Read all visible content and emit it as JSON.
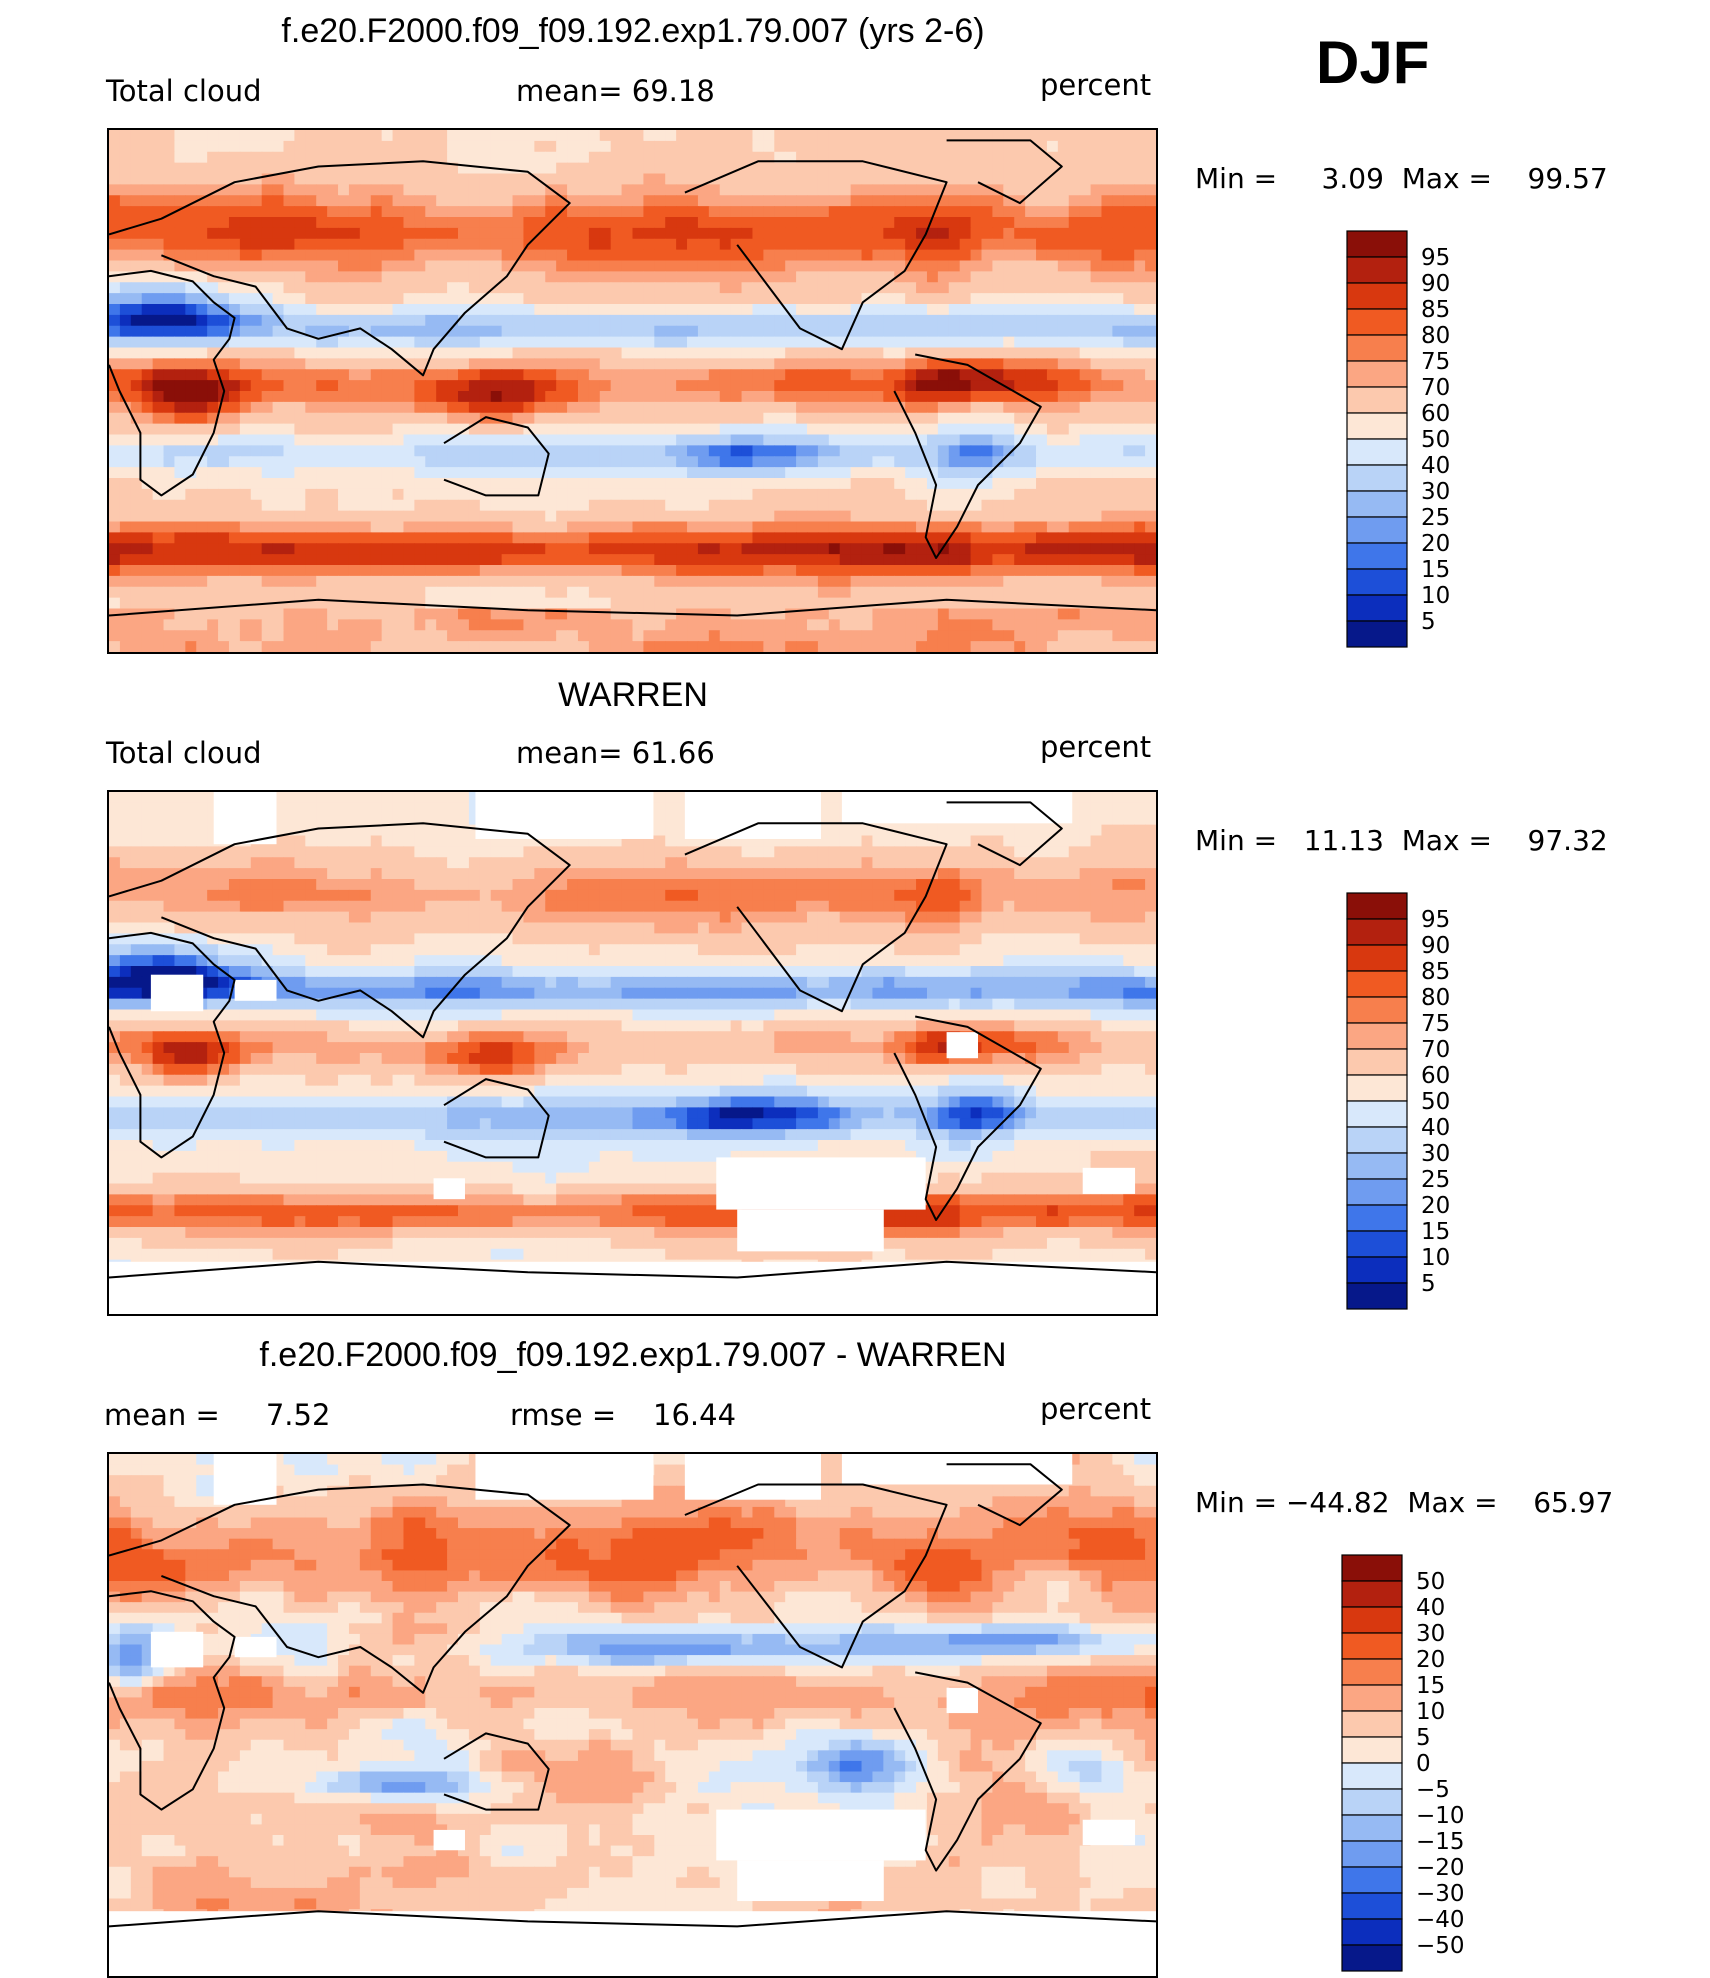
{
  "season": "DJF",
  "panels": [
    {
      "title": "f.e20.F2000.f09_f09.192.exp1.79.007 (yrs 2-6)",
      "left_label": "Total cloud",
      "mid_label": "mean=   69.18",
      "right_label": "percent",
      "minmax": "Min =     3.09  Max =    99.57",
      "colorbar": {
        "levels": [
          "95",
          "90",
          "85",
          "80",
          "75",
          "70",
          "60",
          "50",
          "40",
          "30",
          "25",
          "20",
          "15",
          "10",
          "5"
        ],
        "colors": [
          "#8a0f08",
          "#b3210f",
          "#d8380f",
          "#f05a22",
          "#f77f4d",
          "#fba683",
          "#fcc9ae",
          "#fde7d6",
          "#d8e8fb",
          "#b9d3f7",
          "#96baf3",
          "#6f9cf0",
          "#3f76ea",
          "#1d4fd8",
          "#0c2ebd",
          "#06188a"
        ]
      }
    },
    {
      "title": "WARREN",
      "left_label": "Total cloud",
      "mid_label": "mean=   61.66",
      "right_label": "percent",
      "minmax": "Min =   11.13  Max =    97.32",
      "colorbar": {
        "levels": [
          "95",
          "90",
          "85",
          "80",
          "75",
          "70",
          "60",
          "50",
          "40",
          "30",
          "25",
          "20",
          "15",
          "10",
          "5"
        ],
        "colors": [
          "#8a0f08",
          "#b3210f",
          "#d8380f",
          "#f05a22",
          "#f77f4d",
          "#fba683",
          "#fcc9ae",
          "#fde7d6",
          "#d8e8fb",
          "#b9d3f7",
          "#96baf3",
          "#6f9cf0",
          "#3f76ea",
          "#1d4fd8",
          "#0c2ebd",
          "#06188a"
        ]
      }
    },
    {
      "title": "f.e20.F2000.f09_f09.192.exp1.79.007 - WARREN",
      "left_label": "mean =     7.52",
      "mid_label": "rmse =    16.44",
      "right_label": "percent",
      "minmax": "Min = −44.82  Max =    65.97",
      "colorbar": {
        "levels": [
          "50",
          "40",
          "30",
          "20",
          "15",
          "10",
          "5",
          "0",
          "−5",
          "−10",
          "−15",
          "−20",
          "−30",
          "−40",
          "−50"
        ],
        "colors": [
          "#8a0f08",
          "#b3210f",
          "#d8380f",
          "#f05a22",
          "#f77f4d",
          "#fba683",
          "#fcc9ae",
          "#fde7d6",
          "#d8e8fb",
          "#b9d3f7",
          "#96baf3",
          "#6f9cf0",
          "#3f76ea",
          "#1d4fd8",
          "#0c2ebd",
          "#06188a"
        ]
      }
    }
  ],
  "chart_data": [
    {
      "type": "heatmap",
      "title": "f.e20.F2000.f09_f09.192.exp1.79.007 (yrs 2-6)",
      "variable": "Total cloud",
      "units": "percent",
      "mean": 69.18,
      "min": 3.09,
      "max": 99.57,
      "contour_levels": [
        5,
        10,
        15,
        20,
        25,
        30,
        40,
        50,
        60,
        70,
        75,
        80,
        85,
        90,
        95
      ]
    },
    {
      "type": "heatmap",
      "title": "WARREN",
      "variable": "Total cloud",
      "units": "percent",
      "mean": 61.66,
      "min": 11.13,
      "max": 97.32,
      "contour_levels": [
        5,
        10,
        15,
        20,
        25,
        30,
        40,
        50,
        60,
        70,
        75,
        80,
        85,
        90,
        95
      ]
    },
    {
      "type": "heatmap",
      "title": "f.e20.F2000.f09_f09.192.exp1.79.007 - WARREN",
      "units": "percent",
      "mean": 7.52,
      "rmse": 16.44,
      "min": -44.82,
      "max": 65.97,
      "contour_levels": [
        -50,
        -40,
        -30,
        -20,
        -15,
        -10,
        -5,
        0,
        5,
        10,
        15,
        20,
        30,
        40,
        50
      ]
    }
  ]
}
